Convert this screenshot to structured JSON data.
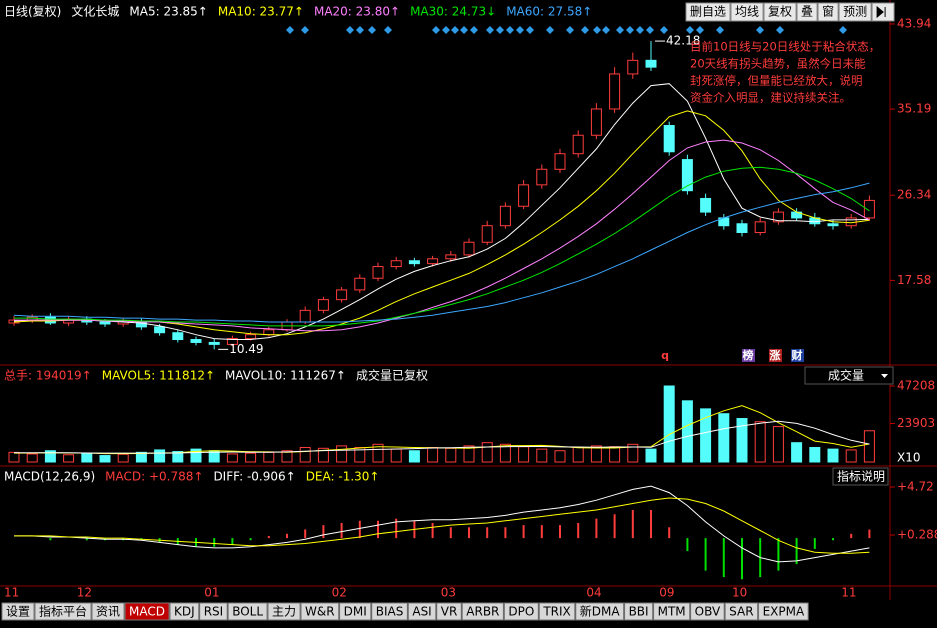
{
  "header": [
    "日线(复权)",
    "文化长城"
  ],
  "toolbar": [
    "删自选",
    "均线",
    "复权",
    "叠",
    "窗",
    "预测"
  ],
  "tabs": [
    "设置",
    "指标平台",
    "资讯",
    "MACD",
    "KDJ",
    "RSI",
    "BOLL",
    "主力",
    "W&R",
    "DMI",
    "BIAS",
    "ASI",
    "VR",
    "ARBR",
    "DPO",
    "TRIX",
    "新DMA",
    "BBI",
    "MTM",
    "OBV",
    "SAR",
    "EXPMA"
  ],
  "active_tab": "MACD",
  "chart_data": [
    {
      "type": "candlestick",
      "open": [
        13.2,
        13.5,
        13.8,
        13.2,
        13.6,
        13.3,
        13.1,
        13.4,
        12.8,
        12.2,
        11.5,
        11.2,
        11.0,
        11.6,
        12.0,
        12.5,
        13.3,
        14.5,
        15.6,
        16.6,
        17.8,
        19.0,
        19.6,
        19.3,
        19.8,
        20.2,
        21.5,
        23.2,
        25.2,
        27.4,
        29.0,
        30.6,
        32.5,
        35.2,
        38.8,
        40.2,
        33.5,
        30.0,
        26.0,
        24.0,
        23.4,
        22.5,
        23.6,
        24.6,
        24.0,
        23.4,
        23.2,
        24.0
      ],
      "high": [
        13.9,
        14.1,
        14.2,
        13.9,
        13.9,
        13.6,
        13.7,
        13.7,
        13.1,
        12.5,
        11.8,
        11.6,
        11.9,
        12.3,
        12.8,
        13.6,
        14.9,
        15.9,
        16.9,
        18.2,
        19.4,
        20.0,
        19.9,
        20.1,
        20.6,
        21.9,
        23.7,
        25.6,
        27.9,
        29.5,
        31.1,
        33.0,
        35.8,
        39.5,
        41.0,
        42.18,
        33.9,
        30.5,
        26.5,
        24.4,
        23.8,
        24.0,
        25.0,
        25.0,
        24.5,
        23.8,
        24.4,
        26.3
      ],
      "low": [
        12.9,
        13.2,
        13.0,
        12.9,
        13.0,
        12.8,
        12.8,
        12.5,
        11.9,
        11.2,
        10.9,
        10.49,
        10.8,
        11.4,
        11.8,
        12.3,
        13.1,
        14.2,
        15.3,
        16.3,
        17.5,
        18.7,
        19.0,
        19.0,
        19.5,
        19.9,
        21.2,
        22.9,
        24.9,
        27.0,
        28.6,
        30.2,
        32.1,
        34.8,
        38.3,
        39.1,
        30.4,
        26.4,
        24.2,
        22.8,
        22.1,
        22.2,
        23.3,
        23.7,
        23.1,
        22.8,
        22.9,
        23.7
      ],
      "close": [
        13.5,
        13.8,
        13.2,
        13.6,
        13.3,
        13.1,
        13.4,
        12.8,
        12.2,
        11.5,
        11.2,
        11.0,
        11.6,
        12.0,
        12.5,
        13.3,
        14.5,
        15.6,
        16.6,
        17.8,
        19.0,
        19.6,
        19.3,
        19.8,
        20.2,
        21.5,
        23.2,
        25.2,
        27.4,
        29.0,
        30.6,
        32.5,
        35.2,
        38.8,
        40.2,
        39.5,
        30.8,
        26.8,
        24.6,
        23.2,
        22.5,
        23.6,
        24.6,
        24.0,
        23.4,
        23.2,
        24.0,
        25.8
      ],
      "up_color": "#ff3c3c",
      "down_color": "#54fcfc",
      "series": [
        {
          "name": "MA5: 23.85↑",
          "color": "#ffffff",
          "values": [
            13.4,
            13.5,
            13.5,
            13.5,
            13.5,
            13.4,
            13.3,
            13.2,
            12.9,
            12.5,
            12.0,
            11.6,
            11.5,
            11.5,
            11.7,
            12.1,
            12.8,
            13.6,
            14.6,
            15.6,
            16.7,
            17.7,
            18.5,
            19.1,
            19.6,
            20.0,
            20.8,
            21.9,
            23.5,
            25.3,
            27.1,
            29.1,
            31.1,
            33.6,
            35.8,
            37.6,
            37.8,
            36.0,
            32.2,
            28.0,
            25.0,
            24.1,
            23.7,
            23.7,
            23.6,
            23.8,
            23.8,
            23.85
          ]
        },
        {
          "name": "MA10: 23.77↑",
          "color": "#ffff00",
          "values": [
            13.3,
            13.4,
            13.4,
            13.5,
            13.5,
            13.5,
            13.4,
            13.4,
            13.3,
            13.1,
            12.8,
            12.5,
            12.3,
            12.1,
            12.0,
            12.0,
            12.2,
            12.6,
            13.1,
            13.7,
            14.5,
            15.4,
            16.2,
            16.9,
            17.6,
            18.3,
            19.2,
            20.2,
            21.3,
            22.5,
            23.8,
            25.2,
            26.8,
            28.6,
            30.6,
            32.5,
            34.4,
            35.0,
            34.5,
            33.0,
            30.9,
            28.0,
            25.8,
            24.6,
            24.0,
            23.6,
            23.5,
            23.77
          ]
        },
        {
          "name": "MA20: 23.80↑",
          "color": "#ff80ff",
          "values": [
            13.5,
            13.5,
            13.5,
            13.5,
            13.5,
            13.4,
            13.4,
            13.3,
            13.3,
            13.2,
            13.1,
            13.0,
            12.9,
            12.7,
            12.6,
            12.5,
            12.4,
            12.4,
            12.5,
            12.8,
            13.2,
            13.7,
            14.2,
            14.8,
            15.4,
            16.1,
            16.9,
            17.8,
            18.8,
            19.8,
            20.9,
            22.1,
            23.4,
            24.9,
            26.5,
            28.2,
            29.9,
            31.2,
            31.8,
            32.0,
            31.7,
            31.0,
            29.9,
            28.5,
            27.0,
            25.6,
            24.8,
            23.8
          ]
        },
        {
          "name": "MA30: 24.73↓",
          "color": "#00e600",
          "values": [
            13.7,
            13.7,
            13.6,
            13.6,
            13.6,
            13.5,
            13.5,
            13.4,
            13.4,
            13.3,
            13.3,
            13.2,
            13.1,
            13.0,
            12.9,
            12.9,
            12.9,
            12.9,
            13.0,
            13.2,
            13.4,
            13.8,
            14.2,
            14.6,
            15.1,
            15.6,
            16.2,
            16.9,
            17.6,
            18.4,
            19.3,
            20.3,
            21.3,
            22.4,
            23.6,
            24.9,
            26.2,
            27.3,
            28.2,
            28.8,
            29.1,
            29.2,
            29.0,
            28.6,
            27.9,
            27.0,
            26.0,
            24.73
          ]
        },
        {
          "name": "MA60: 27.58↑",
          "color": "#3ca8ff",
          "values": [
            14.0,
            13.9,
            13.9,
            13.9,
            13.8,
            13.8,
            13.7,
            13.7,
            13.6,
            13.6,
            13.5,
            13.5,
            13.4,
            13.4,
            13.3,
            13.3,
            13.3,
            13.3,
            13.3,
            13.4,
            13.5,
            13.6,
            13.8,
            14.0,
            14.3,
            14.6,
            14.9,
            15.3,
            15.8,
            16.3,
            16.9,
            17.5,
            18.2,
            19.0,
            19.8,
            20.7,
            21.6,
            22.5,
            23.3,
            24.0,
            24.6,
            25.1,
            25.6,
            26.0,
            26.4,
            26.7,
            27.1,
            27.58
          ]
        }
      ],
      "ylim": [
        9.19,
        44.86
      ],
      "yticks": [
        43.94,
        35.19,
        26.34,
        17.58
      ],
      "annotation": [
        "目前10日线与20日线处于粘合状态，",
        "20天线有拐头趋势，虽然今日未能",
        "封死涨停，但量能已经放大，说明",
        "资金介入明显，建议持续关注。"
      ],
      "markers": [
        "q",
        "榜",
        "涨",
        "财"
      ]
    },
    {
      "type": "bar",
      "header": [
        "总手: 194019↑",
        "成交量已复权"
      ],
      "values": [
        6000,
        5000,
        7000,
        4500,
        5500,
        4000,
        4800,
        6000,
        7500,
        6500,
        8000,
        7000,
        5000,
        5500,
        6000,
        7000,
        9000,
        8500,
        10000,
        9000,
        11000,
        8000,
        7000,
        9000,
        8500,
        10000,
        12000,
        11000,
        9500,
        8000,
        7000,
        9000,
        10000,
        9500,
        11000,
        8000,
        47208,
        38000,
        33000,
        30000,
        27000,
        25000,
        22000,
        12000,
        9000,
        8000,
        7500,
        19401.9
      ],
      "series": [
        {
          "name": "MAVOL5: 111812↑",
          "color": "#ffff00",
          "values": [
            5500,
            5600,
            5800,
            5600,
            5600,
            5200,
            5200,
            5300,
            5600,
            5800,
            6600,
            7000,
            6800,
            6400,
            6300,
            6100,
            6500,
            7200,
            7800,
            8700,
            9500,
            9300,
            9000,
            8800,
            8700,
            8500,
            9300,
            10100,
            10200,
            10300,
            9700,
            8900,
            8700,
            8700,
            9300,
            9500,
            17100,
            22700,
            27500,
            31800,
            35000,
            30600,
            24400,
            18800,
            13000,
            11500,
            9200,
            11181.2
          ]
        },
        {
          "name": "MAVOL10: 111267↑",
          "color": "#ffffff",
          "values": [
            5800,
            5700,
            5700,
            5700,
            5600,
            5500,
            5500,
            5500,
            5500,
            5600,
            5900,
            6100,
            6200,
            6100,
            6000,
            6300,
            6700,
            7100,
            7300,
            7500,
            7800,
            8100,
            8300,
            8700,
            8900,
            9200,
            9300,
            9500,
            9600,
            9600,
            9400,
            9300,
            9200,
            9300,
            9300,
            9100,
            12900,
            15900,
            18300,
            20700,
            22400,
            24100,
            25300,
            24000,
            21000,
            17000,
            13500,
            11126.7
          ]
        }
      ],
      "ylim": [
        0,
        47208
      ],
      "yticks": [
        47208,
        23903
      ],
      "unit_label": "X10",
      "selector": "成交量"
    },
    {
      "type": "macd",
      "title": "MACD(12,26,9)",
      "categories": [
        "11",
        null,
        null,
        null,
        "12",
        null,
        null,
        null,
        null,
        null,
        null,
        "01",
        null,
        null,
        null,
        null,
        null,
        null,
        "02",
        null,
        null,
        null,
        null,
        null,
        "03",
        null,
        null,
        null,
        null,
        null,
        null,
        null,
        "04",
        null,
        null,
        null,
        "09",
        null,
        null,
        null,
        "10",
        null,
        null,
        null,
        null,
        null,
        "11",
        null
      ],
      "series": [
        {
          "name": "MACD: +0.788↑",
          "color": "#ff3c3c",
          "negative_color": "#00e000",
          "values": [
            0,
            0,
            -0.2,
            0,
            -0.2,
            -0.2,
            -0.2,
            -0.2,
            -0.4,
            -0.6,
            -0.8,
            -0.8,
            -0.6,
            -0.2,
            0.2,
            0.4,
            0.8,
            1.2,
            1.4,
            1.6,
            1.6,
            1.8,
            1.6,
            1.4,
            1.0,
            1.0,
            1.0,
            1.0,
            1.2,
            1.2,
            1.2,
            1.4,
            1.8,
            2.2,
            2.6,
            2.6,
            1.0,
            -1.2,
            -3.0,
            -3.6,
            -3.8,
            -3.6,
            -3.0,
            -2.4,
            -1.0,
            -0.2,
            0.4,
            0.788
          ]
        },
        {
          "name": "DIFF: -0.906↑",
          "color": "#ffffff",
          "values": [
            0.2,
            0.2,
            0.1,
            0.1,
            0.0,
            -0.1,
            -0.1,
            -0.2,
            -0.4,
            -0.6,
            -0.8,
            -0.9,
            -0.9,
            -0.8,
            -0.6,
            -0.4,
            -0.1,
            0.3,
            0.6,
            0.9,
            1.2,
            1.5,
            1.6,
            1.7,
            1.7,
            1.8,
            1.9,
            2.1,
            2.4,
            2.6,
            2.8,
            3.1,
            3.5,
            4.0,
            4.5,
            4.8,
            4.2,
            3.0,
            1.5,
            0.2,
            -0.9,
            -1.8,
            -2.2,
            -2.1,
            -1.8,
            -1.5,
            -1.2,
            -0.906
          ]
        },
        {
          "name": "DEA: -1.30↑",
          "color": "#ffff00",
          "values": [
            0.2,
            0.2,
            0.2,
            0.1,
            0.1,
            0.0,
            0.0,
            -0.1,
            -0.2,
            -0.3,
            -0.4,
            -0.5,
            -0.6,
            -0.7,
            -0.7,
            -0.6,
            -0.5,
            -0.3,
            -0.1,
            0.1,
            0.4,
            0.6,
            0.8,
            1.0,
            1.2,
            1.3,
            1.4,
            1.6,
            1.8,
            2.0,
            2.2,
            2.4,
            2.6,
            2.9,
            3.2,
            3.5,
            3.7,
            3.6,
            3.2,
            2.5,
            1.6,
            0.7,
            -0.2,
            -0.9,
            -1.3,
            -1.4,
            -1.4,
            -1.3
          ]
        }
      ],
      "ylim": [
        -4.33,
        6.29
      ],
      "yticks": [
        {
          "value": 4.72,
          "label": "+4.72"
        },
        {
          "value": 0.288,
          "label": "+0.288"
        }
      ],
      "help": "指标说明"
    }
  ]
}
